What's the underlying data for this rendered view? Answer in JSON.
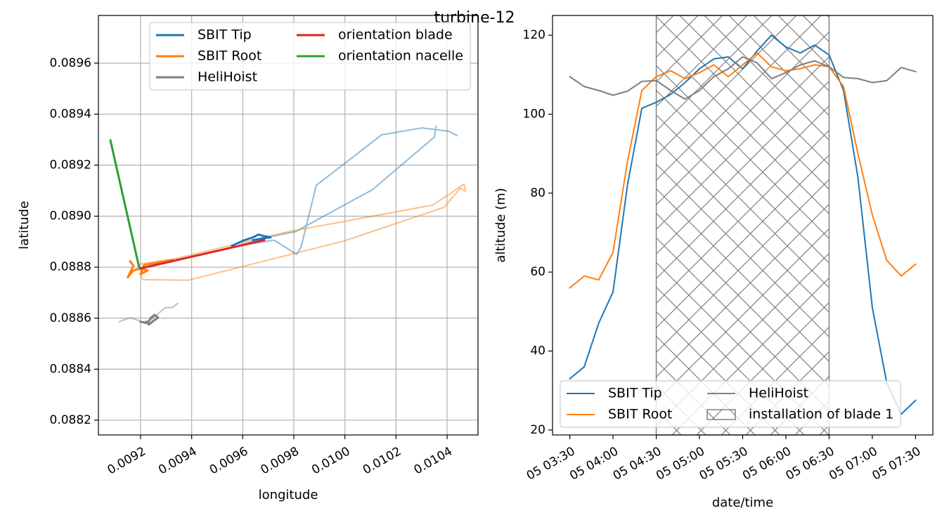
{
  "title": "turbine-12",
  "chart_data": [
    {
      "type": "line",
      "xlabel": "longitude",
      "ylabel": "latitude",
      "xlim": [
        0.009035,
        0.010521
      ],
      "ylim": [
        0.088142,
        0.089787
      ],
      "xticks": [
        0.0092,
        0.0094,
        0.0096,
        0.0098,
        {
          "value": 0.01,
          "label": "0.0100"
        },
        0.0102,
        0.0104
      ],
      "yticks": [
        0.0882,
        0.0884,
        0.0886,
        0.0888,
        {
          "value": 0.089,
          "label": "0.0890"
        },
        0.0892,
        0.0894,
        0.0896
      ],
      "grid": true,
      "legend": "upper right",
      "legend_ncol": 2,
      "series": [
        {
          "name": "SBIT Tip",
          "color": "#1f77b4",
          "alpha": 0.5,
          "legend": false,
          "x": [
            0.010356,
            0.010351,
            0.010108,
            0.009806,
            0.009695,
            0.009585,
            0.009723,
            0.009811,
            0.009828,
            0.009888,
            0.010144,
            0.010301,
            0.010406,
            0.010439
          ],
          "values": [
            0.089352,
            0.089311,
            0.089104,
            0.088939,
            0.088917,
            0.088884,
            0.088906,
            0.08885,
            0.088878,
            0.089121,
            0.089319,
            0.089346,
            0.089333,
            0.089316
          ]
        },
        {
          "name": "SBIT Root",
          "color": "#ff7f0e",
          "alpha": 0.5,
          "legend": false,
          "x": [
            0.0092,
            0.009338,
            0.009778,
            0.010342,
            0.010411,
            0.010466,
            0.010472,
            0.010452,
            0.010389,
            0.009998,
            0.009387,
            0.009208,
            0.0092
          ],
          "values": [
            0.088812,
            0.088834,
            0.088939,
            0.089043,
            0.089087,
            0.089126,
            0.089098,
            0.08911,
            0.089035,
            0.088903,
            0.088749,
            0.088751,
            0.088773
          ]
        },
        {
          "name": "HeliHoist",
          "color": "#7f7f7f",
          "alpha": 0.5,
          "legend": false,
          "x": [
            0.009117,
            0.009159,
            0.009214,
            0.009241,
            0.009296,
            0.009324,
            0.009346
          ],
          "values": [
            0.088586,
            0.088602,
            0.088583,
            0.088594,
            0.088641,
            0.088641,
            0.088658
          ]
        },
        {
          "name": "SBIT Tip",
          "color": "#1f77b4",
          "x": [
            0.009558,
            0.009599,
            0.00964,
            0.009662,
            0.009682,
            0.009709,
            0.009668,
            0.00964
          ],
          "values": [
            0.088884,
            0.088903,
            0.088917,
            0.088928,
            0.088922,
            0.088917,
            0.088911,
            0.088906
          ]
        },
        {
          "name": "SBIT Root",
          "color": "#ff7f0e",
          "x": [
            0.009159,
            0.009172,
            0.00915,
            0.009172,
            0.0092,
            0.009228,
            0.0092,
            0.009214,
            0.009324
          ],
          "values": [
            0.088823,
            0.088806,
            0.08876,
            0.088787,
            0.088795,
            0.088787,
            0.088773,
            0.088809,
            0.088828
          ]
        },
        {
          "name": "HeliHoist",
          "color": "#7f7f7f",
          "x": [
            0.0092,
            0.009228,
            0.009241,
            0.009255,
            0.009269,
            0.00925,
            0.009233,
            0.009222
          ],
          "values": [
            0.088586,
            0.08858,
            0.088602,
            0.088613,
            0.088602,
            0.088589,
            0.088575,
            0.088586
          ]
        },
        {
          "name": "orientation blade",
          "color": "#d62728",
          "x": [
            0.0092,
            0.009684
          ],
          "values": [
            0.088795,
            0.088906
          ]
        },
        {
          "name": "orientation nacelle",
          "color": "#2ca02c",
          "x": [
            0.009082,
            0.009194
          ],
          "values": [
            0.089297,
            0.088801
          ]
        }
      ]
    },
    {
      "type": "line",
      "xlabel": "date/time",
      "ylabel": "altitude (m)",
      "x": [
        "05 03:30",
        "05 03:40",
        "05 03:50",
        "05 04:00",
        "05 04:10",
        "05 04:20",
        "05 04:30",
        "05 04:40",
        "05 04:50",
        "05 05:00",
        "05 05:10",
        "05 05:20",
        "05 05:30",
        "05 05:40",
        "05 05:50",
        "05 06:00",
        "05 06:10",
        "05 06:20",
        "05 06:30",
        "05 06:40",
        "05 06:50",
        "05 07:00",
        "05 07:10",
        "05 07:20",
        "05 07:30"
      ],
      "xlim": [
        "05 03:18",
        "05 07:42"
      ],
      "xticks": [
        "05 03:30",
        "05 04:00",
        "05 04:30",
        "05 05:00",
        "05 05:30",
        "05 06:00",
        "05 06:30",
        "05 07:00",
        "05 07:30"
      ],
      "ylim": [
        18.75,
        125
      ],
      "yticks": [
        20,
        40,
        60,
        80,
        100,
        120
      ],
      "grid": false,
      "legend": "lower left",
      "legend_ncol": 2,
      "series": [
        {
          "name": "SBIT Tip",
          "color": "#1f77b4",
          "values": [
            33,
            36,
            47,
            55,
            82,
            101.5,
            103,
            105,
            108,
            111.5,
            114,
            114.5,
            111.5,
            116,
            120,
            117,
            115.5,
            117.5,
            115,
            106,
            84,
            51,
            32,
            24,
            27.5
          ]
        },
        {
          "name": "SBIT Root",
          "color": "#ff7f0e",
          "values": [
            56,
            59,
            58,
            65,
            88,
            106,
            109.5,
            111,
            109,
            110.5,
            112.5,
            109.5,
            112.5,
            115.5,
            112,
            111,
            111.5,
            112.5,
            112,
            107,
            90,
            74.5,
            63,
            59,
            62
          ]
        },
        {
          "name": "HeliHoist",
          "color": "#7f7f7f",
          "values": [
            109.5,
            107,
            106,
            104.8,
            105.8,
            108.3,
            108.5,
            106,
            103.8,
            106,
            109.5,
            111.5,
            114.5,
            113,
            109,
            110.5,
            112.5,
            113.5,
            112,
            109.3,
            109,
            108,
            108.5,
            111.8,
            110.8
          ]
        }
      ],
      "span": {
        "name": "installation of blade 1",
        "x": [
          "05 04:30",
          "05 06:30"
        ],
        "color": "#808080"
      }
    }
  ]
}
